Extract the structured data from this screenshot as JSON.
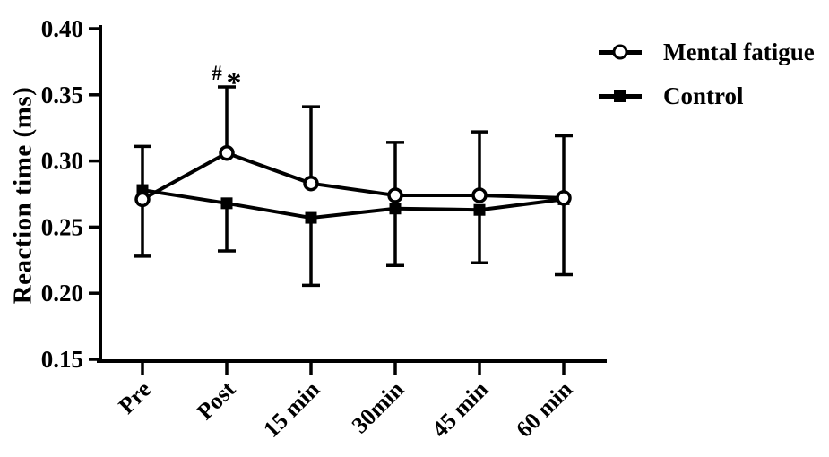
{
  "figure": {
    "background": "#ffffff",
    "ink_color": "#000000"
  },
  "legend": {
    "items": [
      {
        "label": "Mental fatigue",
        "marker": "open-circle"
      },
      {
        "label": "Control",
        "marker": "filled-square"
      }
    ]
  },
  "chart_data": {
    "type": "line",
    "title": "",
    "xlabel": "",
    "ylabel": "Reaction time (ms)",
    "categories": [
      "Pre",
      "Post",
      "15 min",
      "30min",
      "45 min",
      "60 min"
    ],
    "ylim": [
      0.15,
      0.4
    ],
    "ytick_step": 0.05,
    "yticks": [
      {
        "value": 0.4,
        "label": "0.40"
      },
      {
        "value": 0.35,
        "label": "0.35"
      },
      {
        "value": 0.3,
        "label": "0.30"
      },
      {
        "value": 0.25,
        "label": "0.25"
      },
      {
        "value": 0.2,
        "label": "0.20"
      },
      {
        "value": 0.15,
        "label": "0.15"
      }
    ],
    "grid": false,
    "legend_position": "top-right",
    "series": [
      {
        "name": "Mental fatigue",
        "marker": "open-circle",
        "values": [
          0.271,
          0.306,
          0.283,
          0.274,
          0.274,
          0.272
        ],
        "error_sd": [
          0.04,
          0.05,
          0.058,
          0.04,
          0.048,
          0.047
        ],
        "error_direction": "up"
      },
      {
        "name": "Control",
        "marker": "filled-square",
        "values": [
          0.278,
          0.268,
          0.257,
          0.264,
          0.263,
          0.271
        ],
        "error_sd": [
          0.05,
          0.036,
          0.051,
          0.043,
          0.04,
          0.057
        ],
        "error_direction": "down"
      }
    ],
    "significance": [
      {
        "category": "Post",
        "series": "Mental fatigue",
        "symbols": [
          "#",
          "*"
        ]
      }
    ]
  }
}
